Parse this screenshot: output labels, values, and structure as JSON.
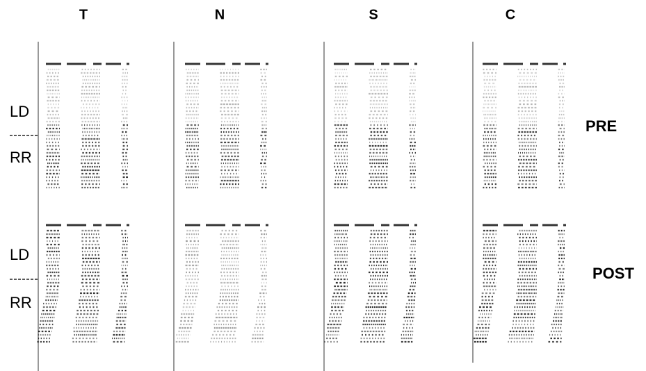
{
  "columns": [
    "T",
    "N",
    "S",
    "C"
  ],
  "rows": [
    {
      "label": "PRE",
      "sides": [
        "LD",
        "RR"
      ]
    },
    {
      "label": "POST",
      "sides": [
        "LD",
        "RR"
      ]
    }
  ]
}
